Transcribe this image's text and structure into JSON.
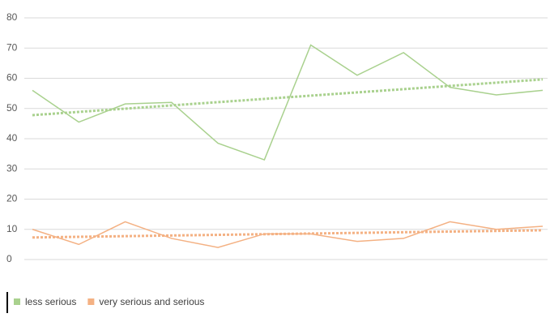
{
  "chart_data": {
    "type": "line",
    "categories": [
      null,
      null,
      null,
      null,
      null,
      null,
      null,
      null,
      null,
      null,
      null,
      null
    ],
    "series": [
      {
        "name": "less serious",
        "color": "#a9d18e",
        "values": [
          56,
          45.5,
          51.5,
          52,
          38.5,
          33,
          71,
          61,
          68.5,
          57,
          54.5,
          56
        ]
      },
      {
        "name": "very serious and serious",
        "color": "#f4b183",
        "values": [
          10,
          5,
          12.5,
          7,
          4,
          8.5,
          8.5,
          6,
          7,
          12.5,
          10,
          11
        ]
      }
    ],
    "ylim": [
      0,
      80
    ],
    "yticks": [
      0,
      10,
      20,
      30,
      40,
      50,
      60,
      70,
      80
    ],
    "grid": true,
    "trendline": true,
    "legend": "bottom-left"
  }
}
